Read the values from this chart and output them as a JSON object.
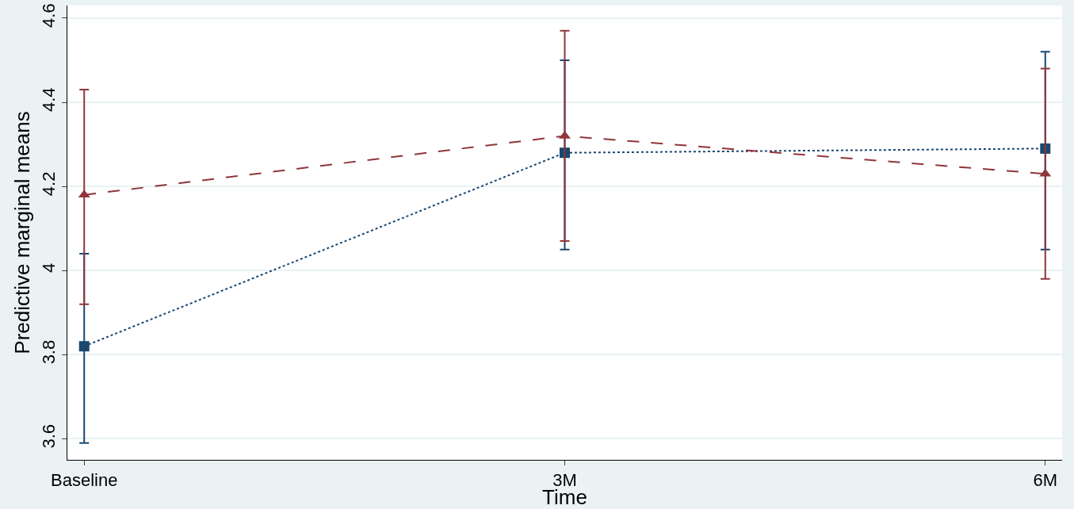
{
  "chart_data": {
    "type": "line",
    "xlabel": "Time",
    "ylabel": "Predictive marginal means",
    "categories": [
      "Baseline",
      "3M",
      "6M"
    ],
    "series": [
      {
        "color": "#1a476f",
        "marker": "square",
        "line_style": "dotted",
        "values": [
          3.82,
          4.28,
          4.29
        ],
        "errors": [
          [
            3.59,
            4.04
          ],
          [
            4.05,
            4.5
          ],
          [
            4.05,
            4.52
          ]
        ]
      },
      {
        "color": "#90353b",
        "marker": "triangle",
        "line_style": "dashed",
        "values": [
          4.18,
          4.32,
          4.23
        ],
        "errors": [
          [
            3.92,
            4.43
          ],
          [
            4.07,
            4.57
          ],
          [
            3.98,
            4.48
          ]
        ]
      }
    ],
    "ylim": [
      3.55,
      4.63
    ],
    "yticks": [
      3.6,
      3.8,
      4,
      4.2,
      4.4,
      4.6
    ],
    "grid": "y"
  }
}
